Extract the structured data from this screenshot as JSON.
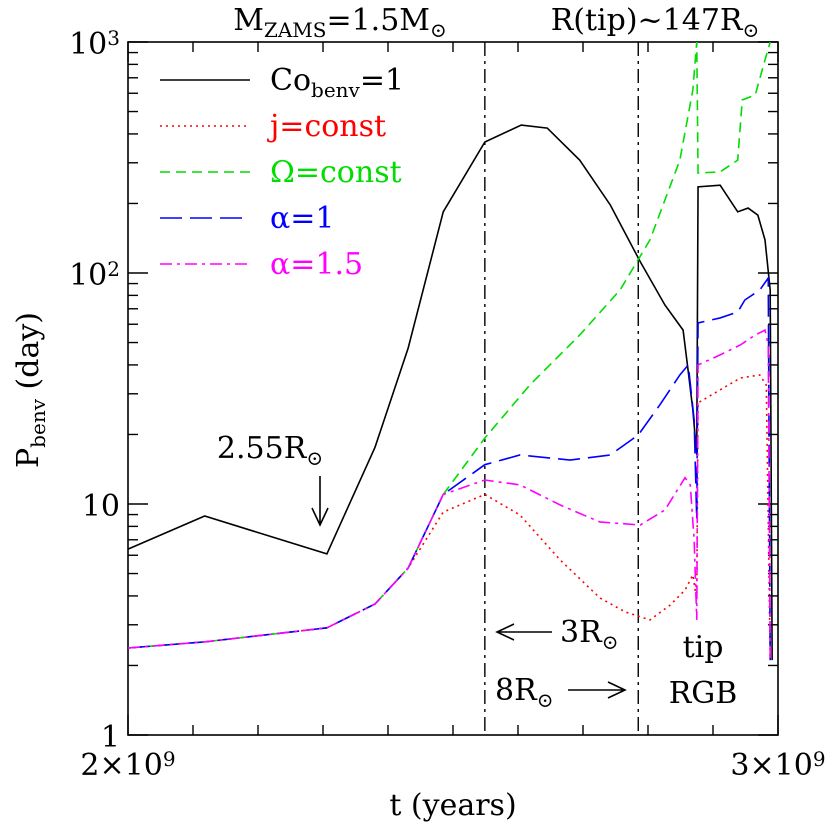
{
  "chart_data": {
    "type": "line",
    "log_y": true,
    "annotations": [
      [
        "M",
        {
          "sub": "ZAMS"
        },
        "=1.5M",
        {
          "sub": "⊙"
        }
      ],
      [
        "R(tip)~147R",
        {
          "sub": "⊙"
        }
      ],
      [
        "2.55R",
        {
          "sub": "⊙"
        }
      ],
      [
        "3R",
        {
          "sub": "⊙"
        }
      ],
      [
        "8R",
        {
          "sub": "⊙"
        }
      ],
      [
        "tip"
      ],
      [
        "RGB"
      ]
    ],
    "x_label": "t (years)",
    "y_label": [
      "P",
      {
        "sub": "benv"
      },
      " (day)"
    ],
    "xlim": [
      2000000000.0,
      3000000000.0
    ],
    "ylim": [
      1,
      1000
    ],
    "xticks": [
      {
        "value": 2000000000.0,
        "label": [
          "2×10",
          {
            "sup": "9"
          }
        ]
      },
      {
        "value": 3000000000.0,
        "label": [
          "3×10",
          {
            "sup": "9"
          }
        ]
      }
    ],
    "xminorticks": [
      2100000000.0,
      2200000000.0,
      2300000000.0,
      2400000000.0,
      2500000000.0,
      2600000000.0,
      2700000000.0,
      2800000000.0,
      2900000000.0
    ],
    "yticks": [
      1,
      10,
      {
        "value": 100,
        "label": [
          "10",
          {
            "sup": "2"
          }
        ]
      },
      {
        "value": 1000,
        "label": [
          "10",
          {
            "sup": "3"
          }
        ]
      }
    ],
    "yminorticks": [
      2,
      3,
      4,
      5,
      6,
      7,
      8,
      9,
      20,
      30,
      40,
      50,
      60,
      70,
      80,
      90,
      200,
      300,
      400,
      500,
      600,
      700,
      800,
      900
    ],
    "vlines": [
      2549000000.0,
      2785000000.0
    ],
    "legend": "upper left",
    "series": [
      {
        "name": [
          "Co",
          {
            "sub": "benv"
          },
          "=1"
        ],
        "color": "#000000",
        "dash": "solid",
        "x": [
          2000000000.0,
          2118000000.0,
          2306000000.0,
          2380000000.0,
          2431000000.0,
          2485000000.0,
          2549000000.0,
          2605000000.0,
          2645000000.0,
          2695000000.0,
          2742000000.0,
          2788000000.0,
          2826000000.0,
          2854000000.0,
          2862000000.0,
          2869000000.0,
          2875000000.0,
          2877000000.0,
          2911000000.0,
          2938000000.0,
          2954000000.0,
          2969000000.0,
          2980000000.0,
          2988000000.0,
          2991000000.0
        ],
        "values": [
          6.38,
          8.87,
          6.08,
          17.6,
          47.3,
          184,
          369,
          437,
          424,
          308,
          197,
          112,
          72.7,
          56.6,
          37.3,
          25.5,
          16.3,
          236,
          240,
          184,
          191,
          178,
          139,
          84.4,
          2.11
        ]
      },
      {
        "name": [
          "j=const"
        ],
        "color": "#ff0000",
        "dash": "dotted",
        "x": [
          2000000000.0,
          2118000000.0,
          2306000000.0,
          2380000000.0,
          2431000000.0,
          2485000000.0,
          2549000000.0,
          2603000000.0,
          2665000000.0,
          2726000000.0,
          2765000000.0,
          2803000000.0,
          2834000000.0,
          2857000000.0,
          2869000000.0,
          2875000000.0,
          2877000000.0,
          2911000000.0,
          2942000000.0,
          2972000000.0,
          2982000000.0,
          2988000000.0
        ],
        "values": [
          2.38,
          2.53,
          2.91,
          3.69,
          5.28,
          9.23,
          11.0,
          8.96,
          5.72,
          3.92,
          3.41,
          3.15,
          3.65,
          4.24,
          4.93,
          3.84,
          27.4,
          31.2,
          35.1,
          36.2,
          32.7,
          2.11
        ]
      },
      {
        "name": [
          "Ω=const"
        ],
        "color": "#00dd00",
        "dash": "dashed",
        "x": [
          2000000000.0,
          2118000000.0,
          2306000000.0,
          2380000000.0,
          2431000000.0,
          2485000000.0,
          2549000000.0,
          2618000000.0,
          2695000000.0,
          2757000000.0,
          2803000000.0,
          2849000000.0,
          2869000000.0,
          2875000000.0,
          2877000000.0,
          2911000000.0,
          2938000000.0,
          2945000000.0,
          2965000000.0,
          2980000000.0,
          2988000000.0
        ],
        "values": [
          2.38,
          2.53,
          2.91,
          3.69,
          5.28,
          11.0,
          19.3,
          32.7,
          53.9,
          84.4,
          139,
          308,
          620,
          1000,
          271,
          274,
          308,
          561,
          590,
          836,
          1000
        ]
      },
      {
        "name": [
          "α=1"
        ],
        "color": "#0000ff",
        "dash": "longdash",
        "x": [
          2000000000.0,
          2118000000.0,
          2306000000.0,
          2380000000.0,
          2431000000.0,
          2485000000.0,
          2549000000.0,
          2603000000.0,
          2680000000.0,
          2742000000.0,
          2785000000.0,
          2818000000.0,
          2849000000.0,
          2862000000.0,
          2871000000.0,
          2875000000.0,
          2877000000.0,
          2911000000.0,
          2938000000.0,
          2949000000.0,
          2972000000.0,
          2985000000.0,
          2988000000.0
        ],
        "values": [
          2.38,
          2.53,
          2.91,
          3.69,
          5.28,
          11.0,
          14.8,
          16.3,
          15.5,
          16.3,
          19.9,
          26.8,
          36.2,
          40.0,
          23.1,
          8.53,
          60.8,
          63.9,
          67.8,
          76.4,
          84.4,
          95.1,
          2.11
        ]
      },
      {
        "name": [
          "α=1.5"
        ],
        "color": "#ff00ff",
        "dash": "dashdot",
        "x": [
          2000000000.0,
          2118000000.0,
          2306000000.0,
          2380000000.0,
          2431000000.0,
          2485000000.0,
          2549000000.0,
          2603000000.0,
          2665000000.0,
          2726000000.0,
          2788000000.0,
          2826000000.0,
          2857000000.0,
          2865000000.0,
          2871000000.0,
          2875000000.0,
          2877000000.0,
          2911000000.0,
          2942000000.0,
          2965000000.0,
          2980000000.0,
          2985000000.0,
          2988000000.0
        ],
        "values": [
          2.38,
          2.53,
          2.91,
          3.69,
          5.28,
          11.0,
          12.7,
          12.1,
          9.9,
          8.36,
          8.11,
          9.42,
          13.0,
          12.1,
          6.98,
          3.15,
          40.0,
          44.2,
          48.8,
          53.9,
          56.6,
          48.8,
          2.11
        ]
      }
    ]
  }
}
